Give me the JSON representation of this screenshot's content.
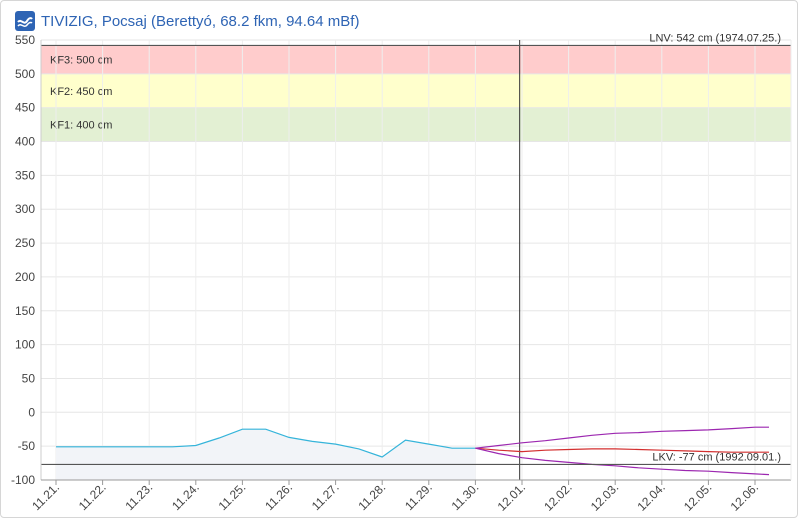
{
  "header": {
    "title": "TIVIZIG, Pocsaj (Berettyó, 68.2 fkm, 94.64 mBf)"
  },
  "colors": {
    "title": "#2e64b4",
    "kf3_band": "#ffcccc",
    "kf2_band": "#ffffcc",
    "kf1_band": "#e3f0d3",
    "measured_line": "#35b4da",
    "measured_fill": "#f2f4f8",
    "forecast_main": "#d32f2f",
    "forecast_range": "#9c27b0",
    "reference_line": "#555555"
  },
  "chart_data": {
    "type": "line",
    "title": "TIVIZIG, Pocsaj (Berettyó, 68.2 fkm, 94.64 mBf)",
    "xlabel": "",
    "ylabel": "",
    "ylim": [
      -100,
      550
    ],
    "xlim": [
      0,
      15.5
    ],
    "grid": true,
    "y_ticks": [
      550,
      500,
      450,
      400,
      350,
      300,
      250,
      200,
      150,
      100,
      50,
      0,
      -50,
      -100
    ],
    "x_ticks": [
      {
        "label": "11.21.",
        "x": 0
      },
      {
        "label": "11.22.",
        "x": 1
      },
      {
        "label": "11.23.",
        "x": 2
      },
      {
        "label": "11.24.",
        "x": 3
      },
      {
        "label": "11.25.",
        "x": 4
      },
      {
        "label": "11.26.",
        "x": 5
      },
      {
        "label": "11.27.",
        "x": 6
      },
      {
        "label": "11.28.",
        "x": 7
      },
      {
        "label": "11.29.",
        "x": 8
      },
      {
        "label": "11.30.",
        "x": 9
      },
      {
        "label": "12.01.",
        "x": 10
      },
      {
        "label": "12.02.",
        "x": 11
      },
      {
        "label": "12.03.",
        "x": 12
      },
      {
        "label": "12.04.",
        "x": 13
      },
      {
        "label": "12.05.",
        "x": 14
      },
      {
        "label": "12.06.",
        "x": 15
      }
    ],
    "bands": [
      {
        "label": "KF3: 500 cm",
        "from": 500,
        "to": 542
      },
      {
        "label": "KF2: 450 cm",
        "from": 450,
        "to": 500
      },
      {
        "label": "KF1: 400 cm",
        "from": 400,
        "to": 450
      }
    ],
    "reference_lines": [
      {
        "label": "LNV: 542 cm (1974.07.25.)",
        "value": 542
      },
      {
        "label": "LKV: -77 cm (1992.09.01.)",
        "value": -77
      }
    ],
    "now_marker_x": 9.95,
    "series": [
      {
        "role": "measured",
        "points": [
          [
            0,
            -51
          ],
          [
            1,
            -51
          ],
          [
            2,
            -51
          ],
          [
            2.5,
            -51
          ],
          [
            3,
            -49
          ],
          [
            3.5,
            -38
          ],
          [
            4,
            -25
          ],
          [
            4.5,
            -25
          ],
          [
            5,
            -37
          ],
          [
            5.5,
            -43
          ],
          [
            6,
            -47
          ],
          [
            6.5,
            -54
          ],
          [
            7,
            -66
          ],
          [
            7.5,
            -41
          ],
          [
            8,
            -47
          ],
          [
            8.5,
            -53
          ],
          [
            9,
            -53
          ]
        ]
      },
      {
        "role": "forecast_main",
        "points": [
          [
            9,
            -53
          ],
          [
            9.5,
            -56
          ],
          [
            10,
            -58
          ],
          [
            10.5,
            -56
          ],
          [
            11,
            -55
          ],
          [
            11.5,
            -54
          ],
          [
            12,
            -54
          ],
          [
            12.5,
            -55
          ],
          [
            13,
            -56
          ],
          [
            13.5,
            -57
          ],
          [
            14,
            -58
          ],
          [
            14.5,
            -59
          ],
          [
            15,
            -59
          ],
          [
            15.3,
            -59
          ]
        ]
      },
      {
        "role": "forecast_upper",
        "points": [
          [
            9,
            -53
          ],
          [
            9.5,
            -49
          ],
          [
            10,
            -45
          ],
          [
            10.5,
            -42
          ],
          [
            11,
            -38
          ],
          [
            11.5,
            -34
          ],
          [
            12,
            -31
          ],
          [
            12.5,
            -30
          ],
          [
            13,
            -28
          ],
          [
            13.5,
            -27
          ],
          [
            14,
            -26
          ],
          [
            14.5,
            -24
          ],
          [
            15,
            -22
          ],
          [
            15.3,
            -22
          ]
        ]
      },
      {
        "role": "forecast_lower",
        "points": [
          [
            9,
            -53
          ],
          [
            9.5,
            -61
          ],
          [
            10,
            -67
          ],
          [
            10.5,
            -71
          ],
          [
            11,
            -74
          ],
          [
            11.5,
            -77
          ],
          [
            12,
            -79
          ],
          [
            12.5,
            -82
          ],
          [
            13,
            -84
          ],
          [
            13.5,
            -86
          ],
          [
            14,
            -87
          ],
          [
            14.5,
            -89
          ],
          [
            15,
            -91
          ],
          [
            15.3,
            -92
          ]
        ]
      }
    ]
  }
}
